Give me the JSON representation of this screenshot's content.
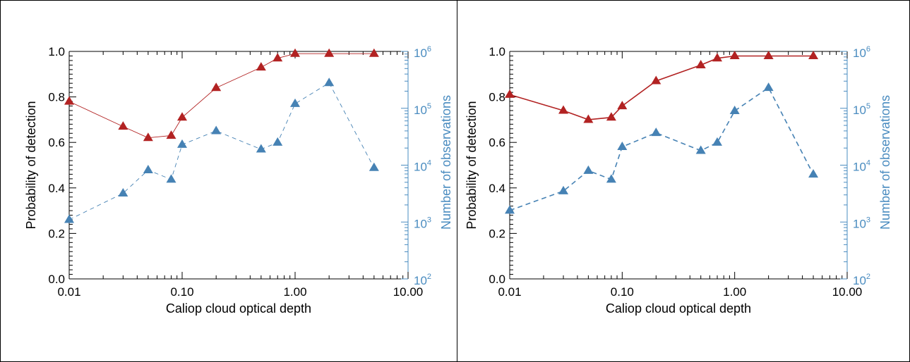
{
  "colors": {
    "probability": "#b22222",
    "observations": "#4682b4",
    "axis_right": "#4a8cc0",
    "frame": "#000000"
  },
  "chart_data": [
    {
      "type": "line",
      "xlabel": "Caliop cloud optical depth",
      "ylabel": "Probability of detection",
      "y2label": "Number of observations",
      "xscale": "log",
      "xlim": [
        0.01,
        10
      ],
      "ylim": [
        0,
        1
      ],
      "y2scale": "log",
      "y2lim": [
        100,
        1000000
      ],
      "xticks": [
        "0.01",
        "0.10",
        "1.00",
        "10.00"
      ],
      "yticks": [
        "0.0",
        "0.2",
        "0.4",
        "0.6",
        "0.8",
        "1.0"
      ],
      "y2ticks": [
        {
          "base": "10",
          "exp": "2"
        },
        {
          "base": "10",
          "exp": "3"
        },
        {
          "base": "10",
          "exp": "4"
        },
        {
          "base": "10",
          "exp": "5"
        },
        {
          "base": "10",
          "exp": "6"
        }
      ],
      "series": [
        {
          "axis": "left",
          "style": "solid-thin",
          "x": [
            0.01,
            0.03,
            0.05,
            0.08,
            0.1,
            0.2,
            0.5,
            0.7,
            1.0,
            2.0,
            5.0
          ],
          "values": [
            0.78,
            0.67,
            0.62,
            0.63,
            0.71,
            0.84,
            0.93,
            0.97,
            0.99,
            0.99,
            0.99
          ]
        },
        {
          "axis": "right",
          "style": "dashed-thin",
          "x": [
            0.01,
            0.03,
            0.05,
            0.08,
            0.1,
            0.2,
            0.5,
            0.7,
            1.0,
            2.0,
            5.0
          ],
          "values": [
            1100,
            3200,
            8200,
            5600,
            23000,
            40000,
            19000,
            25000,
            120000,
            280000,
            9000
          ]
        }
      ]
    },
    {
      "type": "line",
      "xlabel": "Caliop cloud optical depth",
      "ylabel": "Probability of detection",
      "y2label": "Number of observations",
      "xscale": "log",
      "xlim": [
        0.01,
        10
      ],
      "ylim": [
        0,
        1
      ],
      "y2scale": "log",
      "y2lim": [
        100,
        1000000
      ],
      "xticks": [
        "0.01",
        "0.10",
        "1.00",
        "10.00"
      ],
      "yticks": [
        "0.0",
        "0.2",
        "0.4",
        "0.6",
        "0.8",
        "1.0"
      ],
      "y2ticks": [
        {
          "base": "10",
          "exp": "2"
        },
        {
          "base": "10",
          "exp": "3"
        },
        {
          "base": "10",
          "exp": "4"
        },
        {
          "base": "10",
          "exp": "5"
        },
        {
          "base": "10",
          "exp": "6"
        }
      ],
      "series": [
        {
          "axis": "left",
          "style": "solid-thick",
          "x": [
            0.01,
            0.03,
            0.05,
            0.08,
            0.1,
            0.2,
            0.5,
            0.7,
            1.0,
            2.0,
            5.0
          ],
          "values": [
            0.81,
            0.74,
            0.7,
            0.71,
            0.76,
            0.87,
            0.94,
            0.97,
            0.98,
            0.98,
            0.98
          ]
        },
        {
          "axis": "right",
          "style": "dashed-thick",
          "x": [
            0.01,
            0.03,
            0.05,
            0.08,
            0.1,
            0.2,
            0.5,
            0.7,
            1.0,
            2.0,
            5.0
          ],
          "values": [
            1600,
            3500,
            8000,
            5600,
            21000,
            37000,
            18000,
            25000,
            90000,
            230000,
            6900
          ]
        }
      ]
    }
  ]
}
